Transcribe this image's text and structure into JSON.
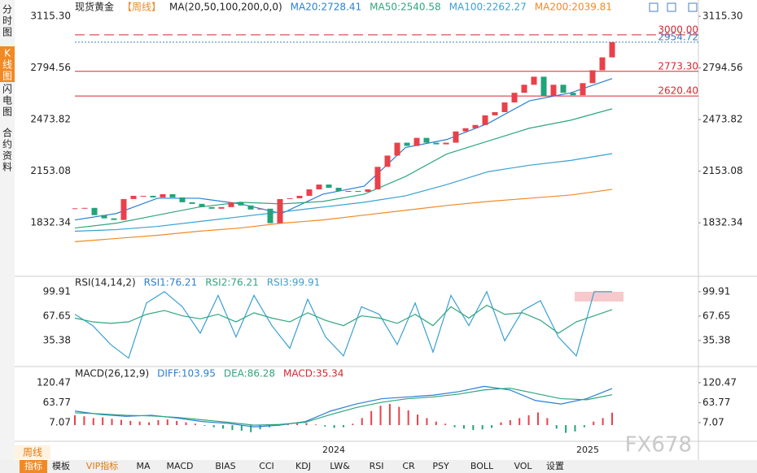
{
  "sidebar_tabs": [
    "分时图",
    "K线图",
    "闪电图",
    "合约资料"
  ],
  "period_label": "周线",
  "year_labels": [
    "2024",
    "2025"
  ],
  "toolbar_tabs": [
    "指标",
    "模板",
    "VIP指标",
    "MA",
    "MACD",
    "BIAS",
    "CCI",
    "KDJ",
    "LW&",
    "RSI",
    "CR",
    "PSY",
    "BOLL",
    "VOL",
    "设置"
  ],
  "watermark": "FX678",
  "chart_data": [
    {
      "type": "candlestick",
      "title": "现货黄金",
      "subtitle": "【周线】",
      "indicator": "MA(20,50,100,200,0,0)",
      "legend": [
        {
          "label": "MA20:2728.41",
          "color": "#2a7fd4"
        },
        {
          "label": "MA50:2540.58",
          "color": "#2fa67c"
        },
        {
          "label": "MA100:2262.27",
          "color": "#3aa0d2"
        },
        {
          "label": "MA200:2039.81",
          "color": "#f08a24"
        }
      ],
      "closes": [
        1920,
        1925,
        1880,
        1860,
        1850,
        1980,
        2000,
        2000,
        1990,
        2010,
        1990,
        1960,
        1950,
        1930,
        1920,
        1930,
        1960,
        1940,
        1915,
        1920,
        1830,
        1980,
        1985,
        2000,
        2040,
        2070,
        2050,
        2030,
        2030,
        2025,
        2040,
        2180,
        2250,
        2330,
        2310,
        2360,
        2330,
        2320,
        2330,
        2400,
        2420,
        2440,
        2500,
        2520,
        2580,
        2640,
        2690,
        2740,
        2620,
        2690,
        2640,
        2625,
        2700,
        2780,
        2860,
        2954.72
      ],
      "up_color": "#e8414a",
      "down_color": "#22a37a",
      "series": [
        {
          "color": "#2a7fd4",
          "values": [
            1850,
            1890,
            1985,
            1985,
            1950,
            1890,
            2010,
            2060,
            2300,
            2350,
            2450,
            2590,
            2640,
            2728.41
          ]
        },
        {
          "color": "#2fa67c",
          "values": [
            1800,
            1830,
            1880,
            1930,
            1960,
            1950,
            1965,
            2010,
            2120,
            2260,
            2340,
            2420,
            2470,
            2540.58
          ]
        },
        {
          "color": "#3aa0d2",
          "values": [
            1780,
            1790,
            1810,
            1840,
            1870,
            1900,
            1930,
            1960,
            2000,
            2070,
            2150,
            2190,
            2220,
            2262.27
          ]
        },
        {
          "color": "#f08a24",
          "values": [
            1715,
            1735,
            1755,
            1780,
            1800,
            1830,
            1850,
            1880,
            1910,
            1940,
            1965,
            1985,
            2005,
            2039.81
          ]
        }
      ],
      "levels": [
        {
          "value": 3000,
          "label": "3000.00",
          "color": "#d8272f",
          "style": "dashed"
        },
        {
          "value": 2954.72,
          "label": "2954.72",
          "color": "#3a7fc0",
          "style": "dotted"
        },
        {
          "value": 2773.3,
          "label": "2773.30",
          "color": "#d8272f",
          "style": "solid"
        },
        {
          "value": 2620.4,
          "label": "2620.40",
          "color": "#d8272f",
          "style": "solid"
        }
      ],
      "ylim": [
        1510,
        3166
      ],
      "yticks": [
        {
          "value": 3115.3,
          "label": "3115.30"
        },
        2794.56,
        2473.82,
        2153.08,
        1832.34
      ]
    },
    {
      "type": "line",
      "indicator": "RSI(14,14,2)",
      "legend": [
        {
          "label": "RSI1:76.21",
          "color": "#2a7fd4"
        },
        {
          "label": "RSI2:76.21",
          "color": "#2fa67c"
        },
        {
          "label": "RSI3:99.91",
          "color": "#3aa0d2"
        }
      ],
      "series": [
        {
          "color": "#3aa0d2",
          "values": [
            70,
            55,
            30,
            12,
            85,
            100,
            80,
            45,
            95,
            40,
            95,
            55,
            25,
            90,
            40,
            15,
            80,
            70,
            30,
            85,
            20,
            95,
            55,
            100,
            35,
            75,
            88,
            40,
            15,
            99.91,
            99.91
          ]
        },
        {
          "color": "#2fa67c",
          "values": [
            65,
            60,
            58,
            60,
            70,
            75,
            68,
            64,
            70,
            60,
            72,
            65,
            60,
            72,
            62,
            55,
            68,
            65,
            58,
            70,
            55,
            80,
            65,
            82,
            70,
            72,
            62,
            45,
            60,
            68,
            76.21
          ]
        }
      ],
      "ylim": [
        2,
        117
      ],
      "yticks": [
        99.91,
        67.65,
        35.38
      ]
    },
    {
      "type": "macd",
      "indicator": "MACD(26,12,9)",
      "legend": [
        {
          "label": "DIFF:103.95",
          "color": "#2a7fd4"
        },
        {
          "label": "DEA:86.28",
          "color": "#2fa67c"
        },
        {
          "label": "MACD:35.34",
          "color": "#d8272f"
        }
      ],
      "series": [
        {
          "color": "#2a7fd4",
          "values": [
            40,
            30,
            25,
            28,
            20,
            10,
            5,
            -5,
            0,
            10,
            40,
            60,
            75,
            80,
            85,
            95,
            110,
            100,
            70,
            60,
            75,
            103.95
          ]
        },
        {
          "color": "#2fa67c",
          "values": [
            35,
            32,
            28,
            26,
            22,
            15,
            8,
            0,
            2,
            8,
            30,
            50,
            65,
            75,
            80,
            88,
            100,
            105,
            90,
            75,
            72,
            86.28
          ]
        }
      ],
      "histogram": [
        28,
        25,
        20,
        22,
        18,
        15,
        12,
        10,
        8,
        14,
        16,
        12,
        8,
        4,
        -2,
        -6,
        -10,
        -14,
        -16,
        -20,
        -12,
        -6,
        -2,
        4,
        8,
        6,
        2,
        -4,
        -8,
        -6,
        4,
        20,
        40,
        55,
        60,
        52,
        42,
        30,
        20,
        10,
        4,
        -6,
        -10,
        -14,
        -12,
        -8,
        8,
        14,
        20,
        28,
        36,
        20,
        -10,
        -22,
        -18,
        -6,
        10,
        20,
        35.34
      ],
      "up_color": "#e8414a",
      "down_color": "#22a37a",
      "ylim": [
        -39,
        164
      ],
      "yticks": [
        120.47,
        63.77,
        7.07
      ]
    }
  ]
}
